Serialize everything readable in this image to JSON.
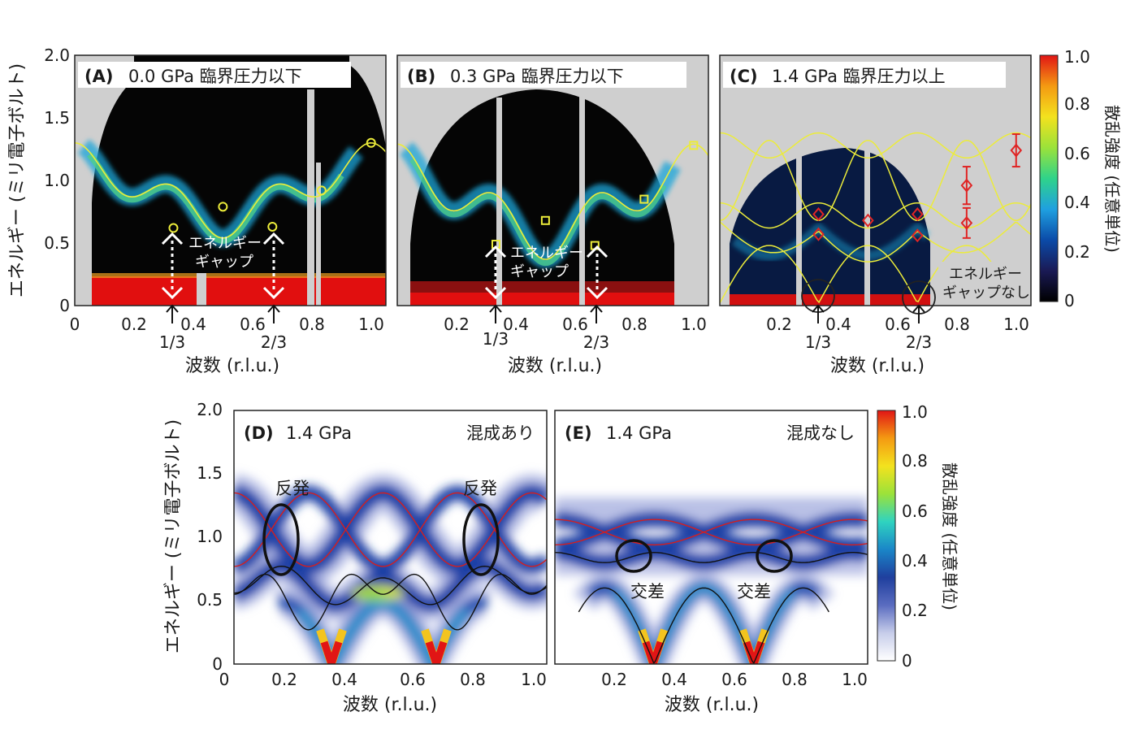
{
  "chart_data": [
    {
      "panel": "A",
      "type": "heatmap",
      "label": "(A)",
      "title": "0.0 GPa  臨界圧力以下",
      "xlabel": "波数 (r.l.u.)",
      "ylabel": "エネルギー (ミリ電子ボルト)",
      "xlim": [
        0,
        1.05
      ],
      "ylim": [
        0,
        2.0
      ],
      "xticks": [
        "0",
        "0.2",
        "0.4",
        "0.6",
        "0.8",
        "1.0"
      ],
      "yticks": [
        "0",
        "0.5",
        "1.0",
        "1.5",
        "2.0"
      ],
      "markers": "circle",
      "points": [
        [
          0.333,
          0.62
        ],
        [
          0.5,
          0.79
        ],
        [
          0.667,
          0.63
        ],
        [
          0.833,
          0.92
        ],
        [
          1.0,
          1.3
        ]
      ],
      "gap_label": [
        "エネルギー",
        "ギャップ"
      ],
      "fractions": [
        "1/3",
        "2/3"
      ]
    },
    {
      "panel": "B",
      "type": "heatmap",
      "label": "(B)",
      "title": "0.3 GPa  臨界圧力以下",
      "xlabel": "波数 (r.l.u.)",
      "xlim": [
        0,
        1.05
      ],
      "ylim": [
        0,
        2.0
      ],
      "xticks": [
        "0.2",
        "0.4",
        "0.6",
        "0.8",
        "1.0"
      ],
      "markers": "square",
      "points": [
        [
          0.333,
          0.49
        ],
        [
          0.5,
          0.68
        ],
        [
          0.667,
          0.48
        ],
        [
          0.833,
          0.85
        ],
        [
          1.0,
          1.28
        ]
      ],
      "gap_label": [
        "エネルギー",
        "ギャップ"
      ],
      "fractions": [
        "1/3",
        "2/3"
      ]
    },
    {
      "panel": "C",
      "type": "heatmap",
      "label": "(C)",
      "title": "1.4 GPa  臨界圧力以上",
      "xlabel": "波数 (r.l.u.)",
      "xlim": [
        0,
        1.05
      ],
      "ylim": [
        0,
        2.0
      ],
      "xticks": [
        "0.2",
        "0.4",
        "0.6",
        "0.8",
        "1.0"
      ],
      "markers": "diamond",
      "points": [
        [
          0.333,
          0.73
        ],
        [
          0.333,
          0.57
        ],
        [
          0.5,
          0.68
        ],
        [
          0.667,
          0.73
        ],
        [
          0.667,
          0.56
        ],
        [
          0.833,
          0.96
        ],
        [
          0.833,
          0.66
        ],
        [
          1.0,
          1.24
        ]
      ],
      "errorbars": [
        [
          0.833,
          0.96,
          0.15
        ],
        [
          0.833,
          0.66,
          0.12
        ],
        [
          1.0,
          1.24,
          0.13
        ]
      ],
      "nogap_label": [
        "エネルギー",
        "ギャップなし"
      ],
      "fractions": [
        "1/3",
        "2/3"
      ]
    },
    {
      "panel": "D",
      "type": "heatmap",
      "label": "(D)",
      "title": "1.4 GPa",
      "tag": "混成あり",
      "xlabel": "波数 (r.l.u.)",
      "ylabel": "エネルギー (ミリ電子ボルト)",
      "xlim": [
        0,
        1.05
      ],
      "ylim": [
        0,
        2.0
      ],
      "xticks": [
        "0",
        "0.2",
        "0.4",
        "0.6",
        "0.8",
        "1.0"
      ],
      "yticks": [
        "0",
        "0.5",
        "1.0",
        "1.5",
        "2.0"
      ],
      "annotations": [
        "反発",
        "反発"
      ]
    },
    {
      "panel": "E",
      "type": "heatmap",
      "label": "(E)",
      "title": "1.4 GPa",
      "tag": "混成なし",
      "xlabel": "波数 (r.l.u.)",
      "xlim": [
        0,
        1.05
      ],
      "ylim": [
        0,
        2.0
      ],
      "xticks": [
        "0.2",
        "0.4",
        "0.6",
        "0.8",
        "1.0"
      ],
      "annotations": [
        "交差",
        "交差"
      ]
    }
  ],
  "colorbar_top": {
    "label": "散乱強度 (任意単位)",
    "ticks": [
      "0",
      "0.2",
      "0.4",
      "0.6",
      "0.8",
      "1.0"
    ],
    "colors": [
      "#000000",
      "#1a1a55",
      "#0b4ba8",
      "#1fa0e0",
      "#2fd38a",
      "#9be23a",
      "#f3e21e",
      "#f49a12",
      "#e11515"
    ]
  },
  "colorbar_bottom": {
    "label": "散乱強度 (任意単位)",
    "ticks": [
      "0",
      "0.2",
      "0.4",
      "0.6",
      "0.8",
      "1.0"
    ],
    "colors": [
      "#ffffff",
      "#c7cdea",
      "#5a6cc0",
      "#1f3f9e",
      "#1a86c8",
      "#2fd3c0",
      "#9be23a",
      "#f3e21e",
      "#f49a12",
      "#e11515"
    ]
  }
}
